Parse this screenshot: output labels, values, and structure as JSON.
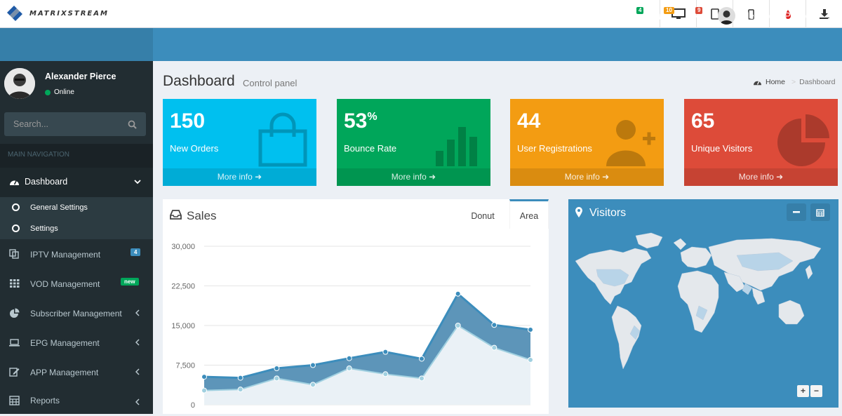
{
  "logo": {
    "text": "MATRIXSTREAM"
  },
  "topbar_icons": [
    "desktop-icon",
    "tablet-icon",
    "mobile-icon",
    "droplet-icon",
    "download-icon"
  ],
  "header": {
    "messages_count": "4",
    "notifications_count": "10",
    "tasks_count": "9",
    "user_name": "Alexander Pierce"
  },
  "sidebar": {
    "user_name": "Alexander Pierce",
    "status": "Online",
    "search_placeholder": "Search...",
    "nav_header": "MAIN NAVIGATION",
    "dashboard_label": "Dashboard",
    "submenu": [
      "General Settings",
      "Settings"
    ],
    "items": [
      {
        "label": "IPTV Management",
        "badge": "4",
        "badge_color": "#3c8dbc"
      },
      {
        "label": "VOD Management",
        "badge": "new",
        "badge_color": "#00a65a"
      },
      {
        "label": "Subscriber  Management"
      },
      {
        "label": "EPG  Management"
      },
      {
        "label": "APP  Management"
      },
      {
        "label": "Reports"
      }
    ]
  },
  "page": {
    "title": "Dashboard",
    "subtitle": "Control panel",
    "breadcrumb_home": "Home",
    "breadcrumb_current": "Dashboard"
  },
  "stats": [
    {
      "value": "150",
      "suffix": "",
      "label": "New Orders",
      "footer": "More info",
      "color": "#00c0ef",
      "icon": "shopping-bag-icon"
    },
    {
      "value": "53",
      "suffix": "%",
      "label": "Bounce Rate",
      "footer": "More info",
      "color": "#00a65a",
      "icon": "bar-chart-icon"
    },
    {
      "value": "44",
      "suffix": "",
      "label": "User Registrations",
      "footer": "More info",
      "color": "#f39c12",
      "icon": "user-plus-icon"
    },
    {
      "value": "65",
      "suffix": "",
      "label": "Unique Visitors",
      "footer": "More info",
      "color": "#dd4b39",
      "icon": "pie-chart-icon"
    }
  ],
  "sales": {
    "title": "Sales",
    "tab_donut": "Donut",
    "tab_area": "Area"
  },
  "visitors": {
    "title": "Visitors",
    "zoom_in": "+",
    "zoom_out": "−"
  },
  "chart_data": {
    "type": "area",
    "title": "Sales",
    "yticks": [
      "30,000",
      "22,500",
      "15,000",
      "7,500",
      "0"
    ],
    "ylim": [
      0,
      30000
    ],
    "grid": true,
    "series": [
      {
        "color": "#3c8dbc",
        "values": [
          5300,
          5100,
          6900,
          7500,
          8800,
          10000,
          8700,
          21000,
          15100,
          14200
        ]
      },
      {
        "color": "#a0d0e0",
        "values": [
          2700,
          2900,
          5000,
          3800,
          6900,
          5800,
          5000,
          15000,
          10800,
          8500
        ]
      }
    ]
  }
}
